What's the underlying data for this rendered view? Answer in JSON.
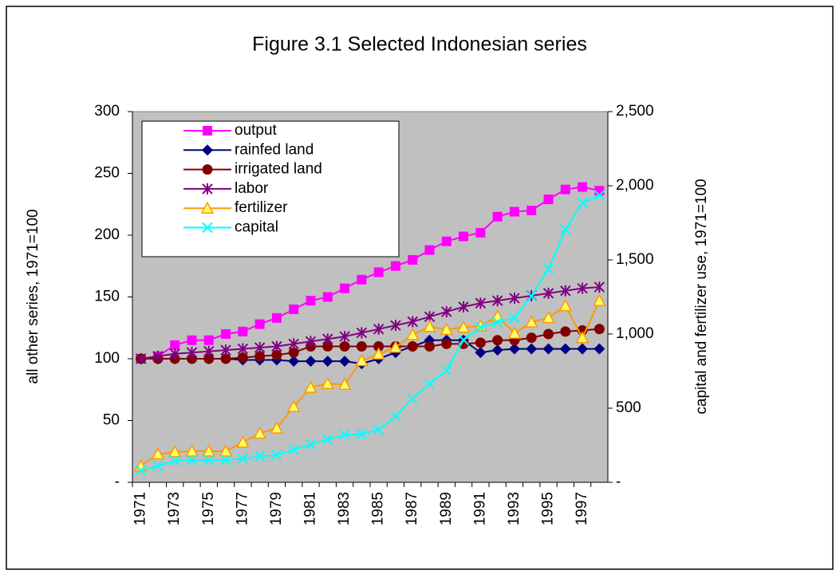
{
  "chart_data": {
    "type": "line",
    "title": "Figure 3.1 Selected Indonesian series",
    "y_label": "all other series, 1971=100",
    "y2_label": "capital and fertilizer use, 1971=100",
    "categories": [
      "1971",
      null,
      "1973",
      null,
      "1975",
      null,
      "1977",
      null,
      "1979",
      null,
      "1981",
      null,
      "1983",
      null,
      "1985",
      null,
      "1987",
      null,
      "1989",
      null,
      "1991",
      null,
      "1993",
      null,
      "1995",
      null,
      "1997",
      null
    ],
    "ylim": [
      0,
      300
    ],
    "yticks": [
      {
        "value": 0,
        "label": "-"
      },
      50,
      100,
      150,
      200,
      250,
      300
    ],
    "y2lim": [
      0,
      2500
    ],
    "y2ticks": [
      {
        "value": 0,
        "label": "-"
      },
      500,
      {
        "value": 1000,
        "label": "1,000"
      },
      {
        "value": 1500,
        "label": "1,500"
      },
      {
        "value": 2000,
        "label": "2,000"
      },
      {
        "value": 2500,
        "label": "2,500"
      }
    ],
    "background": "#c0c0c0",
    "legend": "top-left",
    "series": [
      {
        "name": "output",
        "color": "#ff00ff",
        "marker": "square",
        "values": [
          100,
          102,
          111,
          115,
          115,
          120,
          122,
          128,
          133,
          140,
          147,
          150,
          157,
          164,
          170,
          175,
          180,
          188,
          195,
          199,
          202,
          215,
          219,
          220,
          229,
          237,
          239,
          236
        ]
      },
      {
        "name": "rainfed land",
        "color": "#000080",
        "marker": "diamond",
        "values": [
          100,
          100,
          100,
          100,
          100,
          100,
          99,
          99,
          99,
          98,
          98,
          98,
          98,
          96,
          100,
          105,
          110,
          115,
          115,
          115,
          105,
          107,
          108,
          108,
          108,
          108,
          108,
          108
        ]
      },
      {
        "name": "irrigated land",
        "color": "#800000",
        "marker": "circle",
        "values": [
          100,
          100,
          100,
          100,
          100,
          100,
          101,
          102,
          103,
          105,
          110,
          110,
          110,
          110,
          110,
          110,
          110,
          110,
          112,
          112,
          113,
          115,
          115,
          117,
          120,
          122,
          123,
          124
        ]
      },
      {
        "name": "labor",
        "color": "#800080",
        "marker": "star",
        "values": [
          100,
          102,
          104,
          105,
          106,
          107,
          108,
          109,
          110,
          112,
          114,
          116,
          118,
          121,
          124,
          127,
          130,
          134,
          138,
          142,
          145,
          147,
          149,
          151,
          153,
          155,
          157,
          158
        ]
      },
      {
        "name": "fertilizer",
        "color": "#ff9900",
        "marker": "triangle",
        "axis": "y2",
        "values": [
          110,
          190,
          205,
          210,
          210,
          210,
          270,
          330,
          365,
          510,
          640,
          665,
          660,
          820,
          865,
          910,
          995,
          1050,
          1030,
          1045,
          1055,
          1120,
          1005,
          1080,
          1110,
          1190,
          975,
          1225
        ]
      },
      {
        "name": "capital",
        "color": "#00ffff",
        "marker": "x",
        "axis": "y2",
        "values": [
          80,
          110,
          145,
          150,
          150,
          150,
          160,
          175,
          185,
          220,
          255,
          290,
          320,
          325,
          355,
          445,
          565,
          665,
          755,
          960,
          1045,
          1080,
          1110,
          1255,
          1440,
          1705,
          1885,
          1935
        ]
      }
    ]
  }
}
